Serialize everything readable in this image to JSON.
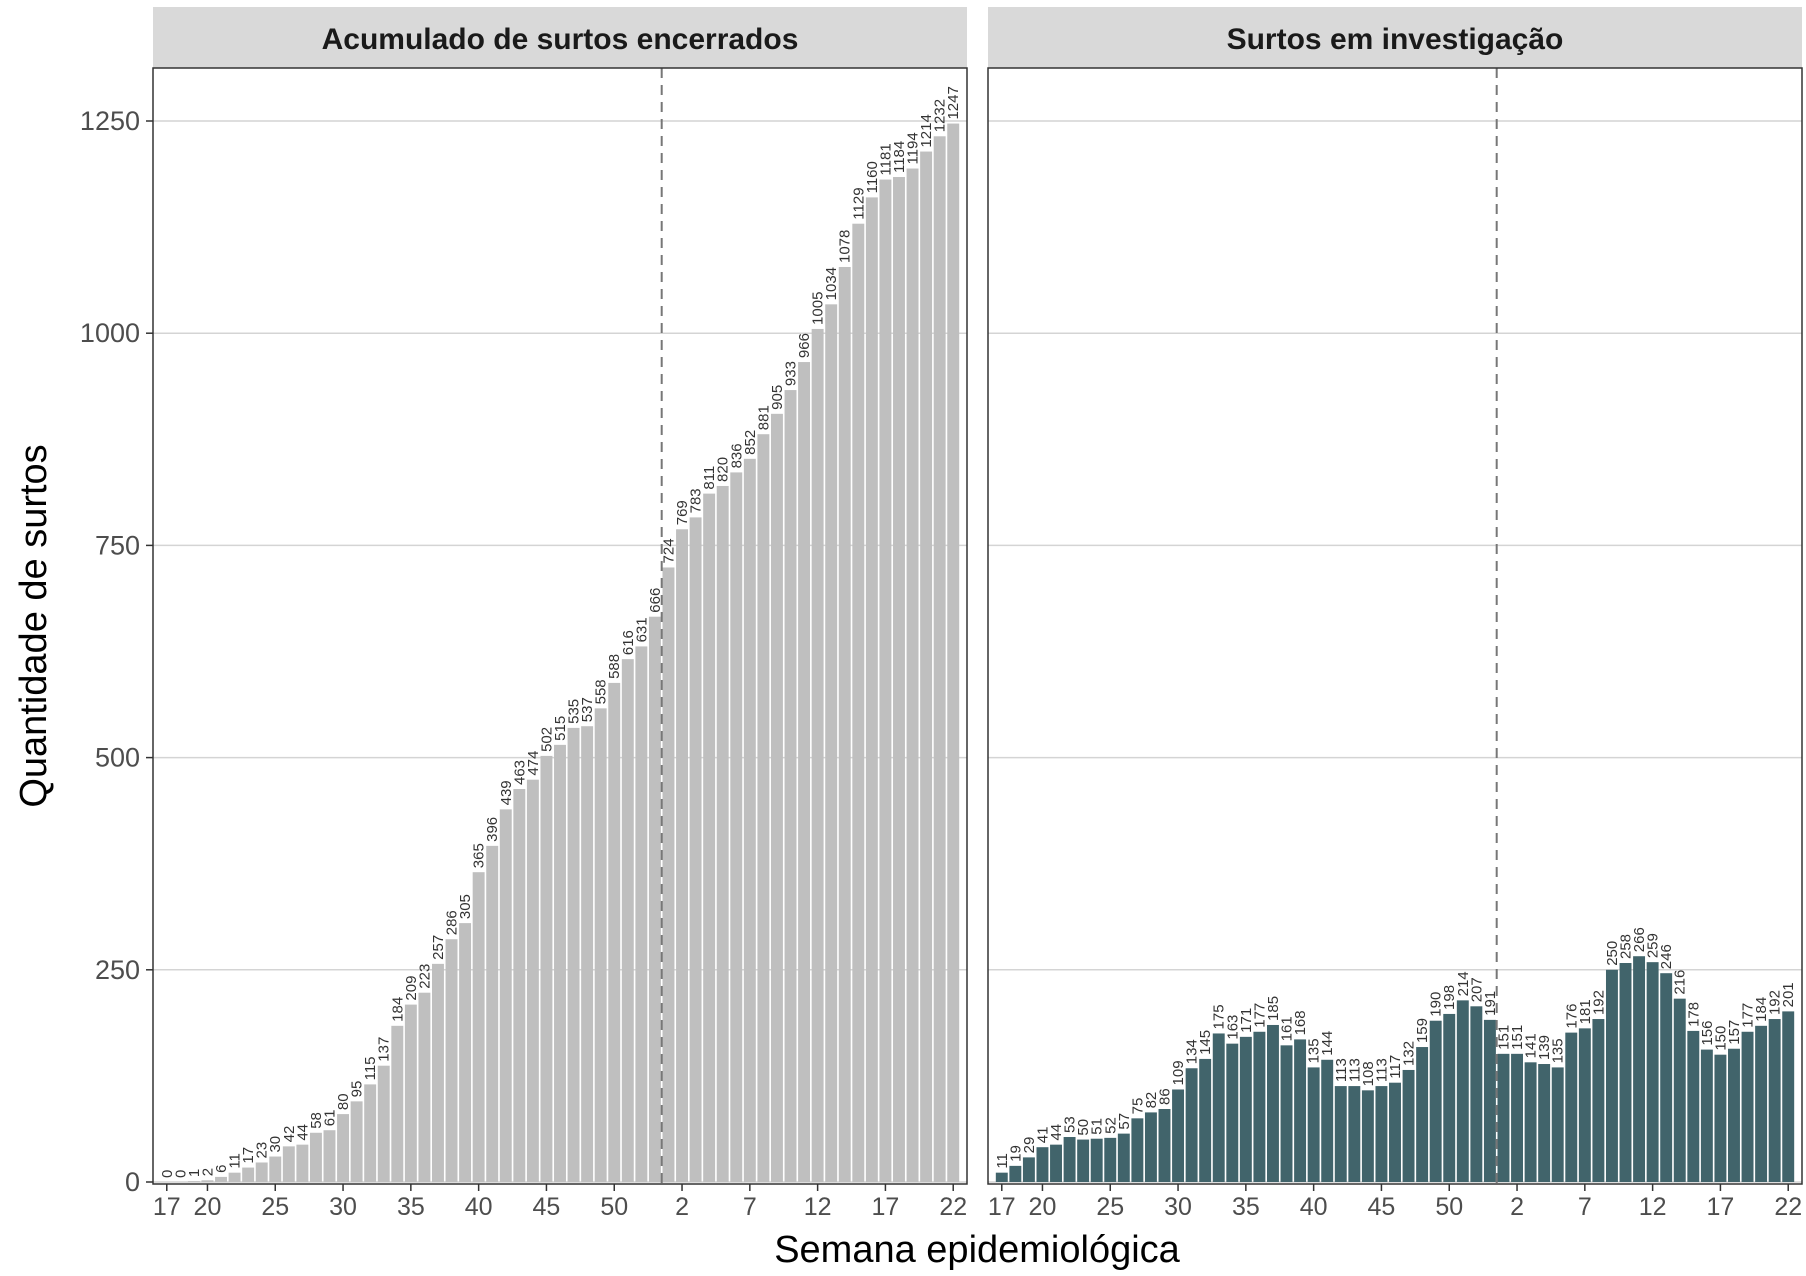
{
  "chart_data": {
    "type": "bar",
    "xlabel": "Semana epidemiológica",
    "ylabel": "Quantidade de surtos",
    "ylim": [
      0,
      1250
    ],
    "yticks": [
      0,
      250,
      500,
      750,
      1000,
      1250
    ],
    "grid": true,
    "x_weeks": [
      17,
      18,
      19,
      20,
      21,
      22,
      23,
      24,
      25,
      26,
      27,
      28,
      29,
      30,
      31,
      32,
      33,
      34,
      35,
      36,
      37,
      38,
      39,
      40,
      41,
      42,
      43,
      44,
      45,
      46,
      47,
      48,
      49,
      50,
      51,
      52,
      53,
      1,
      2,
      3,
      4,
      5,
      6,
      7,
      8,
      9,
      10,
      11,
      12,
      13,
      14,
      15,
      16,
      17,
      18,
      19,
      20,
      21,
      22
    ],
    "xticks": [
      "17",
      "20",
      "25",
      "30",
      "35",
      "40",
      "45",
      "50",
      "2",
      "7",
      "12",
      "17",
      "22"
    ],
    "xtick_indices": [
      0,
      3,
      8,
      13,
      18,
      23,
      28,
      33,
      38,
      43,
      48,
      53,
      58
    ],
    "vline_after_index": 36,
    "panels": [
      {
        "strip": "Acumulado de surtos encerrados",
        "color": "#bfbfbf",
        "values": [
          0,
          0,
          1,
          2,
          6,
          11,
          17,
          23,
          30,
          42,
          44,
          58,
          61,
          80,
          95,
          115,
          137,
          184,
          209,
          223,
          257,
          286,
          305,
          365,
          396,
          439,
          463,
          474,
          502,
          515,
          535,
          537,
          558,
          588,
          616,
          631,
          666,
          724,
          769,
          783,
          811,
          820,
          836,
          852,
          881,
          905,
          933,
          966,
          1005,
          1034,
          1078,
          1129,
          1160,
          1181,
          1184,
          1194,
          1214,
          1232,
          1247
        ]
      },
      {
        "strip": "Surtos em investigação",
        "color": "#41646b",
        "values": [
          11,
          19,
          29,
          41,
          44,
          53,
          50,
          51,
          52,
          57,
          75,
          82,
          86,
          109,
          134,
          145,
          175,
          163,
          171,
          177,
          185,
          161,
          168,
          135,
          144,
          113,
          113,
          108,
          113,
          117,
          132,
          159,
          190,
          198,
          214,
          207,
          191,
          151,
          151,
          141,
          139,
          135,
          176,
          181,
          192,
          250,
          258,
          266,
          259,
          246,
          216,
          178,
          156,
          150,
          157,
          177,
          184,
          192,
          201
        ]
      }
    ]
  }
}
